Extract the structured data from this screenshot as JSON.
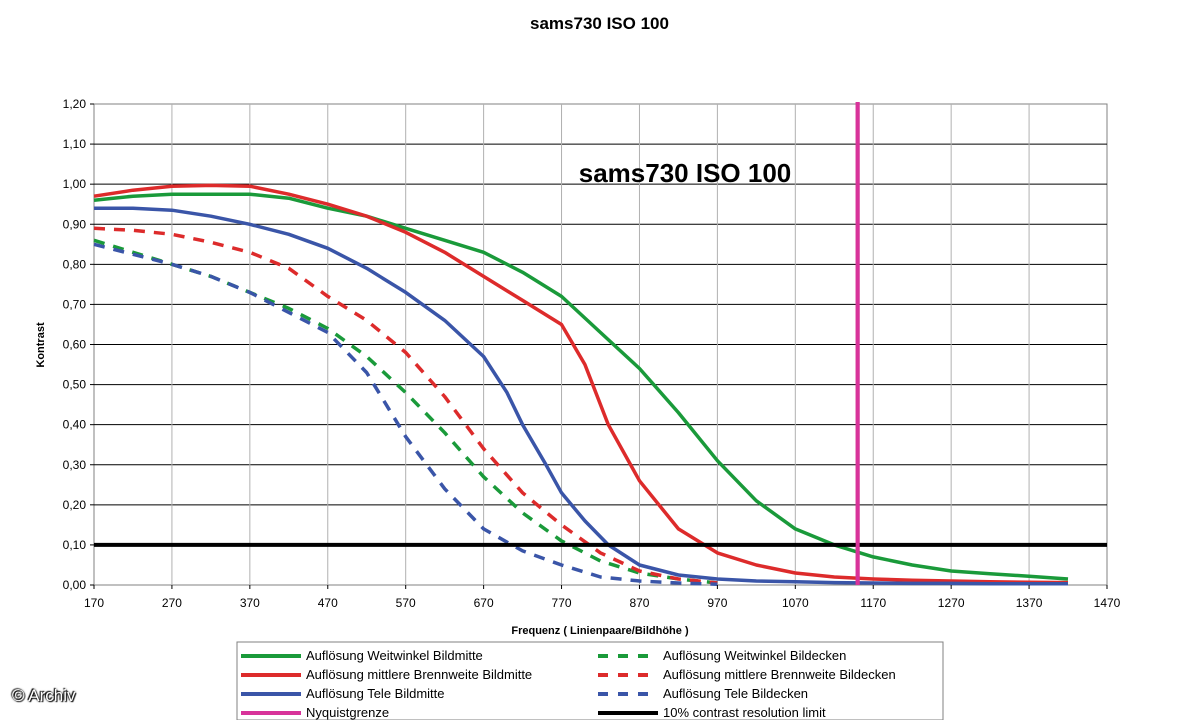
{
  "watermark": "© Archiv",
  "chart_data": {
    "type": "line",
    "title": "sams730 ISO 100",
    "inner_title": "sams730 ISO 100",
    "xlabel": "Frequenz ( Linienpaare/Bildhöhe )",
    "ylabel": "Kontrast",
    "xlim": [
      170,
      1470
    ],
    "ylim": [
      0,
      1.2
    ],
    "x_ticks": [
      170,
      270,
      370,
      470,
      570,
      670,
      770,
      870,
      970,
      1070,
      1170,
      1270,
      1370,
      1470
    ],
    "y_ticks": [
      "0,00",
      "0,10",
      "0,20",
      "0,30",
      "0,40",
      "0,50",
      "0,60",
      "0,70",
      "0,80",
      "0,90",
      "1,00",
      "1,10",
      "1,20"
    ],
    "grid": true,
    "legend_position": "bottom",
    "series": [
      {
        "name": "Auflösung Weitwinkel Bildmitte",
        "color": "#1a9a3a",
        "dash": "solid",
        "x": [
          170,
          220,
          270,
          320,
          370,
          420,
          470,
          520,
          570,
          620,
          670,
          720,
          770,
          820,
          870,
          920,
          970,
          1020,
          1070,
          1120,
          1170,
          1220,
          1270,
          1320,
          1370,
          1420
        ],
        "y": [
          0.96,
          0.97,
          0.975,
          0.975,
          0.975,
          0.965,
          0.94,
          0.92,
          0.89,
          0.86,
          0.83,
          0.78,
          0.72,
          0.63,
          0.54,
          0.43,
          0.31,
          0.21,
          0.14,
          0.1,
          0.07,
          0.05,
          0.035,
          0.028,
          0.022,
          0.015
        ]
      },
      {
        "name": "Auflösung mittlere Brennweite Bildmitte",
        "color": "#dd2b2b",
        "dash": "solid",
        "x": [
          170,
          220,
          270,
          320,
          370,
          420,
          470,
          520,
          570,
          620,
          670,
          720,
          770,
          800,
          830,
          870,
          920,
          970,
          1020,
          1070,
          1120,
          1170,
          1220,
          1270,
          1320,
          1370,
          1420
        ],
        "y": [
          0.97,
          0.985,
          0.995,
          0.997,
          0.995,
          0.975,
          0.95,
          0.92,
          0.88,
          0.83,
          0.77,
          0.71,
          0.65,
          0.55,
          0.4,
          0.26,
          0.14,
          0.08,
          0.05,
          0.03,
          0.02,
          0.015,
          0.012,
          0.01,
          0.008,
          0.007,
          0.006
        ]
      },
      {
        "name": "Auflösung Tele Bildmitte",
        "color": "#3a55a8",
        "dash": "solid",
        "x": [
          170,
          220,
          270,
          320,
          370,
          420,
          470,
          520,
          570,
          620,
          670,
          700,
          720,
          750,
          770,
          800,
          830,
          870,
          920,
          970,
          1020,
          1070,
          1120,
          1170,
          1220,
          1270,
          1320,
          1370,
          1420
        ],
        "y": [
          0.94,
          0.94,
          0.935,
          0.92,
          0.9,
          0.875,
          0.84,
          0.79,
          0.73,
          0.66,
          0.57,
          0.48,
          0.4,
          0.3,
          0.23,
          0.16,
          0.1,
          0.05,
          0.025,
          0.015,
          0.01,
          0.008,
          0.006,
          0.005,
          0.004,
          0.004,
          0.003,
          0.003,
          0.003
        ]
      },
      {
        "name": "Auflösung Weitwinkel Bildecken",
        "color": "#1a9a3a",
        "dash": "dashed",
        "x": [
          170,
          220,
          270,
          320,
          370,
          420,
          470,
          520,
          570,
          620,
          670,
          720,
          770,
          820,
          870,
          920,
          970
        ],
        "y": [
          0.86,
          0.83,
          0.8,
          0.77,
          0.73,
          0.69,
          0.64,
          0.57,
          0.48,
          0.38,
          0.27,
          0.18,
          0.11,
          0.06,
          0.03,
          0.015,
          0.005
        ]
      },
      {
        "name": "Auflösung mittlere Brennweite Bildecken",
        "color": "#dd2b2b",
        "dash": "dashed",
        "x": [
          170,
          220,
          270,
          320,
          370,
          420,
          470,
          520,
          570,
          620,
          670,
          720,
          770,
          820,
          870,
          920,
          970
        ],
        "y": [
          0.89,
          0.885,
          0.875,
          0.855,
          0.83,
          0.79,
          0.72,
          0.66,
          0.58,
          0.47,
          0.34,
          0.23,
          0.15,
          0.08,
          0.035,
          0.015,
          0.005
        ]
      },
      {
        "name": "Auflösung Tele Bildecken",
        "color": "#3a55a8",
        "dash": "dashed",
        "x": [
          170,
          220,
          270,
          320,
          370,
          420,
          470,
          520,
          570,
          620,
          670,
          720,
          770,
          820,
          870,
          920,
          970
        ],
        "y": [
          0.85,
          0.825,
          0.8,
          0.77,
          0.73,
          0.68,
          0.63,
          0.53,
          0.37,
          0.24,
          0.14,
          0.085,
          0.05,
          0.02,
          0.01,
          0.005,
          0.002
        ]
      },
      {
        "name": "Nyquistgrenze",
        "color": "#d8339a",
        "dash": "solid",
        "type": "vertical",
        "x": [
          1150
        ]
      },
      {
        "name": "10% contrast resolution limit",
        "color": "#000000",
        "dash": "solid",
        "type": "horizontal",
        "y": [
          0.1
        ]
      }
    ]
  }
}
